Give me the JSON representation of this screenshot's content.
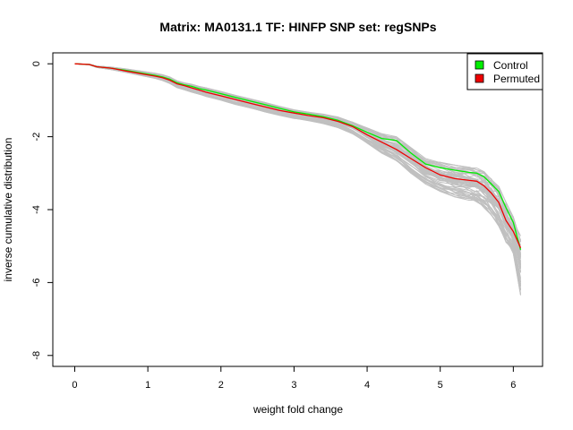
{
  "chart_data": {
    "type": "line",
    "title": "Matrix: MA0131.1 TF: HINFP SNP set: regSNPs",
    "xlabel": "weight fold change",
    "ylabel": "inverse cumulative distribution",
    "xlim": [
      -0.3,
      6.4
    ],
    "ylim": [
      -8.3,
      0.3
    ],
    "xticks": [
      0,
      1,
      2,
      3,
      4,
      5,
      6
    ],
    "yticks": [
      0,
      -2,
      -4,
      -6,
      -8
    ],
    "legend_position": "top-right",
    "legend": [
      {
        "label": "Control",
        "color": "#00ee00"
      },
      {
        "label": "Permuted",
        "color": "#ee0000"
      }
    ],
    "x": [
      0,
      0.2,
      0.3,
      0.5,
      0.7,
      0.9,
      1.1,
      1.2,
      1.3,
      1.4,
      1.5,
      1.6,
      1.7,
      1.8,
      2.0,
      2.2,
      2.4,
      2.6,
      2.8,
      3.0,
      3.2,
      3.4,
      3.6,
      3.8,
      4.0,
      4.2,
      4.4,
      4.6,
      4.8,
      5.0,
      5.2,
      5.4,
      5.5,
      5.6,
      5.7,
      5.8,
      5.9,
      6.0,
      6.1
    ],
    "series": [
      {
        "name": "Control",
        "color": "#00ee00",
        "values": [
          0,
          -0.02,
          -0.08,
          -0.12,
          -0.18,
          -0.25,
          -0.32,
          -0.36,
          -0.42,
          -0.52,
          -0.58,
          -0.62,
          -0.68,
          -0.72,
          -0.82,
          -0.92,
          -1.02,
          -1.12,
          -1.22,
          -1.32,
          -1.38,
          -1.45,
          -1.55,
          -1.7,
          -1.88,
          -2.05,
          -2.1,
          -2.45,
          -2.75,
          -2.85,
          -2.92,
          -2.98,
          -3.0,
          -3.1,
          -3.3,
          -3.5,
          -3.95,
          -4.35,
          -5.1
        ]
      },
      {
        "name": "Permuted",
        "color": "#ee0000",
        "values": [
          0,
          -0.02,
          -0.08,
          -0.12,
          -0.2,
          -0.27,
          -0.34,
          -0.38,
          -0.45,
          -0.55,
          -0.6,
          -0.66,
          -0.72,
          -0.78,
          -0.88,
          -0.98,
          -1.08,
          -1.18,
          -1.28,
          -1.35,
          -1.42,
          -1.48,
          -1.58,
          -1.72,
          -1.95,
          -2.15,
          -2.35,
          -2.6,
          -2.85,
          -3.05,
          -3.15,
          -3.2,
          -3.22,
          -3.35,
          -3.55,
          -3.8,
          -4.3,
          -4.6,
          -5.05
        ]
      }
    ],
    "permutation_band": {
      "color": "#c0c0c0",
      "count": 60,
      "lower": [
        0,
        -0.03,
        -0.1,
        -0.16,
        -0.24,
        -0.32,
        -0.4,
        -0.46,
        -0.54,
        -0.66,
        -0.72,
        -0.78,
        -0.84,
        -0.9,
        -1.0,
        -1.12,
        -1.22,
        -1.32,
        -1.42,
        -1.5,
        -1.56,
        -1.64,
        -1.75,
        -1.92,
        -2.2,
        -2.45,
        -2.7,
        -3.0,
        -3.3,
        -3.5,
        -3.65,
        -3.75,
        -3.8,
        -3.95,
        -4.15,
        -4.45,
        -4.9,
        -5.2,
        -6.35
      ],
      "upper": [
        0,
        -0.01,
        -0.06,
        -0.09,
        -0.14,
        -0.2,
        -0.26,
        -0.3,
        -0.36,
        -0.46,
        -0.52,
        -0.56,
        -0.62,
        -0.66,
        -0.76,
        -0.86,
        -0.96,
        -1.06,
        -1.16,
        -1.26,
        -1.32,
        -1.38,
        -1.46,
        -1.58,
        -1.76,
        -1.92,
        -2.0,
        -2.3,
        -2.6,
        -2.7,
        -2.78,
        -2.84,
        -2.86,
        -2.96,
        -3.16,
        -3.36,
        -3.8,
        -4.2,
        -4.7
      ]
    }
  }
}
